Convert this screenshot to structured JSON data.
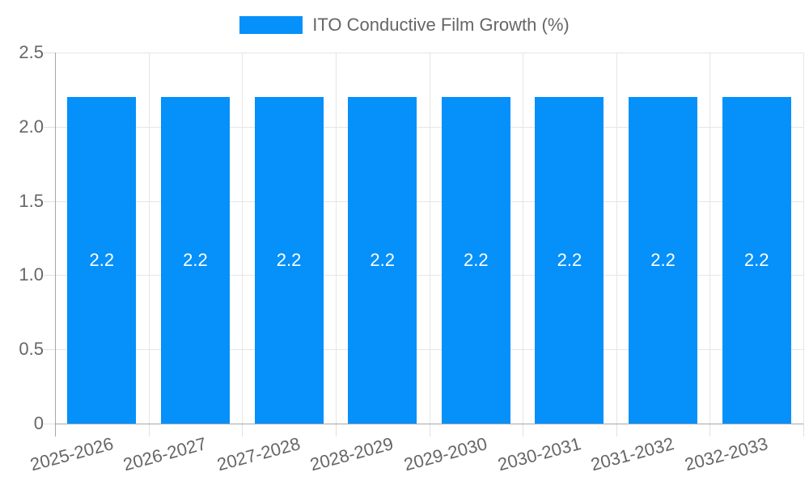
{
  "legend": {
    "label": "ITO Conductive Film Growth (%)",
    "swatch_color": "#0590FA"
  },
  "chart_data": {
    "type": "bar",
    "title": "",
    "xlabel": "",
    "ylabel": "",
    "categories": [
      "2025-2026",
      "2026-2027",
      "2027-2028",
      "2028-2029",
      "2029-2030",
      "2030-2031",
      "2031-2032",
      "2032-2033"
    ],
    "series": [
      {
        "name": "ITO Conductive Film Growth (%)",
        "values": [
          2.2,
          2.2,
          2.2,
          2.2,
          2.2,
          2.2,
          2.2,
          2.2
        ],
        "bar_labels": [
          "2.2",
          "2.2",
          "2.2",
          "2.2",
          "2.2",
          "2.2",
          "2.2",
          "2.2"
        ],
        "color": "#0590FA"
      }
    ],
    "ylim": [
      0,
      2.5
    ],
    "y_ticks": [
      0,
      0.5,
      1.0,
      1.5,
      2.0,
      2.5
    ],
    "y_tick_labels": [
      "0",
      "0.5",
      "1.0",
      "1.5",
      "2.0",
      "2.5"
    ],
    "grid": true,
    "legend_position": "top",
    "bar_label_color": "#ffffff"
  },
  "colors": {
    "bar": "#0590FA",
    "grid": "#e6e6e6",
    "tick": "#e0e0e0",
    "axis": "#a6a6a6",
    "text": "#666666",
    "background": "#ffffff"
  }
}
